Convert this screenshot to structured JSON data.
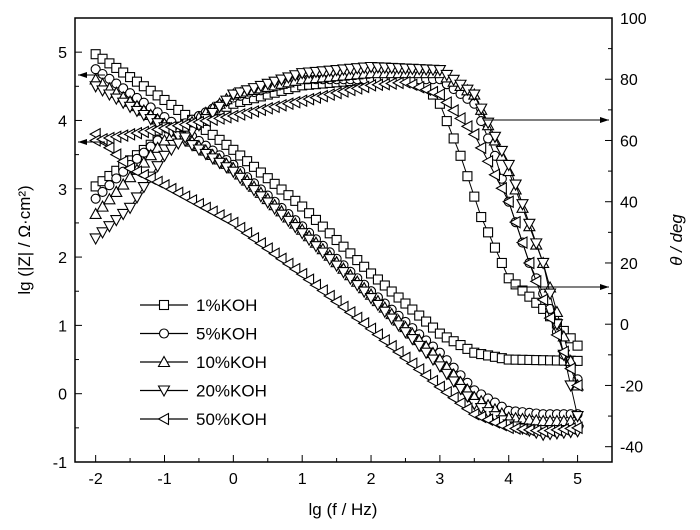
{
  "chart_data": {
    "type": "line",
    "title": "",
    "xlabel": "lg (f / Hz)",
    "ylabel": "lg (|Z| / Ω·cm²)",
    "y2label": "θ / deg",
    "xlim": [
      -2.3,
      5.5
    ],
    "ylim": [
      -1,
      5.5
    ],
    "y2lim": [
      -45,
      100
    ],
    "xticks": [
      "-2",
      "-1",
      "0",
      "1",
      "2",
      "3",
      "4",
      "5"
    ],
    "yticks": [
      "-1",
      "0",
      "1",
      "2",
      "3",
      "4",
      "5"
    ],
    "y2ticks": [
      "-40",
      "-20",
      "0",
      "20",
      "40",
      "60",
      "80",
      "100"
    ],
    "legend_position": "bottom-left",
    "series": [
      {
        "name": "1%KOH",
        "marker": "square",
        "modulus": [
          [
            -2,
            4.97
          ],
          [
            -1,
            4.3
          ],
          [
            0,
            3.57
          ],
          [
            1,
            2.74
          ],
          [
            2,
            1.76
          ],
          [
            3,
            0.88
          ],
          [
            3.5,
            0.6
          ],
          [
            4,
            0.5
          ],
          [
            5,
            0.48
          ]
        ],
        "phase": [
          [
            -2,
            45
          ],
          [
            -1,
            62
          ],
          [
            0,
            72
          ],
          [
            1,
            78
          ],
          [
            2,
            80
          ],
          [
            2.5,
            80
          ],
          [
            2.8,
            78
          ],
          [
            3,
            72
          ],
          [
            3.3,
            55
          ],
          [
            3.6,
            35
          ],
          [
            4,
            15
          ],
          [
            4.5,
            5
          ],
          [
            5,
            -7
          ]
        ]
      },
      {
        "name": "5%KOH",
        "marker": "circle",
        "modulus": [
          [
            -2,
            4.75
          ],
          [
            -1,
            4.05
          ],
          [
            0,
            3.35
          ],
          [
            1,
            2.45
          ],
          [
            2,
            1.5
          ],
          [
            3,
            0.6
          ],
          [
            3.5,
            0.05
          ],
          [
            4,
            -0.25
          ],
          [
            4.5,
            -0.3
          ],
          [
            5,
            -0.3
          ]
        ],
        "phase": [
          [
            -2,
            41
          ],
          [
            -1.5,
            52
          ],
          [
            -1,
            62
          ],
          [
            0,
            74
          ],
          [
            1,
            80
          ],
          [
            2,
            80
          ],
          [
            3,
            80
          ],
          [
            3.5,
            72
          ],
          [
            3.8,
            55
          ],
          [
            4,
            40
          ],
          [
            4.3,
            20
          ],
          [
            4.6,
            5
          ],
          [
            4.8,
            -10
          ],
          [
            5,
            -18
          ]
        ]
      },
      {
        "name": "10%KOH",
        "marker": "triangle-up",
        "modulus": [
          [
            -2,
            4.6
          ],
          [
            -1,
            3.95
          ],
          [
            0,
            3.3
          ],
          [
            1,
            2.4
          ],
          [
            2,
            1.45
          ],
          [
            3,
            0.5
          ],
          [
            3.5,
            -0.05
          ],
          [
            4,
            -0.35
          ],
          [
            4.5,
            -0.4
          ],
          [
            5,
            -0.4
          ]
        ],
        "phase": [
          [
            -2,
            36
          ],
          [
            -1,
            60
          ],
          [
            0,
            75
          ],
          [
            1,
            80
          ],
          [
            2,
            82
          ],
          [
            3,
            82
          ],
          [
            3.5,
            75
          ],
          [
            4,
            50
          ],
          [
            4.5,
            20
          ],
          [
            5,
            -20
          ]
        ]
      },
      {
        "name": "20%KOH",
        "marker": "triangle-down",
        "modulus": [
          [
            -2,
            4.5
          ],
          [
            -1,
            3.9
          ],
          [
            0,
            3.25
          ],
          [
            1,
            2.35
          ],
          [
            2,
            1.4
          ],
          [
            3,
            0.4
          ],
          [
            3.5,
            -0.15
          ],
          [
            4,
            -0.45
          ],
          [
            4.5,
            -0.6
          ],
          [
            5,
            -0.55
          ]
        ],
        "phase": [
          [
            -2,
            28
          ],
          [
            -1.5,
            38
          ],
          [
            -1,
            55
          ],
          [
            0,
            75
          ],
          [
            1,
            82
          ],
          [
            2,
            84
          ],
          [
            3,
            83
          ],
          [
            3.5,
            75
          ],
          [
            4,
            52
          ],
          [
            4.5,
            20
          ],
          [
            4.8,
            -10
          ],
          [
            5,
            -30
          ]
        ]
      },
      {
        "name": "50%KOH",
        "marker": "triangle-left",
        "modulus": [
          [
            -2,
            3.8
          ],
          [
            -1.5,
            3.3
          ],
          [
            -1,
            3.05
          ],
          [
            0,
            2.5
          ],
          [
            1,
            1.75
          ],
          [
            2,
            0.95
          ],
          [
            3,
            0.1
          ],
          [
            3.5,
            -0.3
          ],
          [
            4,
            -0.5
          ],
          [
            4.5,
            -0.55
          ],
          [
            5,
            -0.5
          ]
        ],
        "phase": [
          [
            -2,
            60
          ],
          [
            -1,
            64
          ],
          [
            0,
            68
          ],
          [
            1,
            73
          ],
          [
            2,
            78
          ],
          [
            2.5,
            79
          ],
          [
            3,
            75
          ],
          [
            3.5,
            62
          ],
          [
            4,
            40
          ],
          [
            4.3,
            20
          ],
          [
            4.6,
            2
          ],
          [
            5,
            -20
          ]
        ]
      }
    ]
  }
}
